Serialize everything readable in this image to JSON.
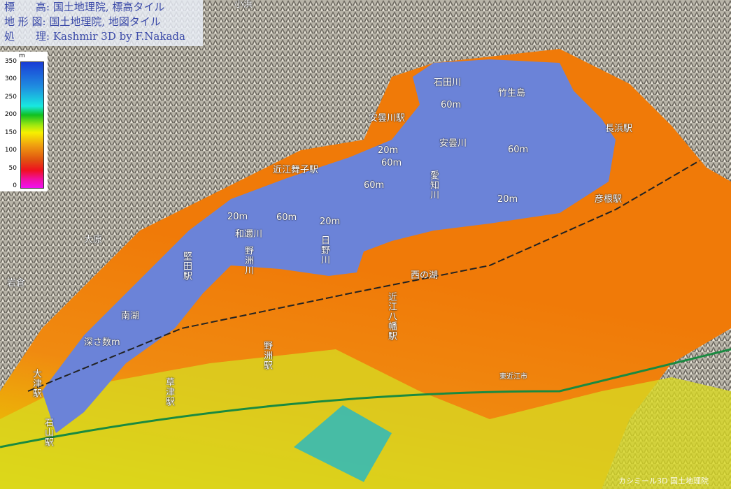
{
  "credits": [
    "標　　高: 国土地理院, 標高タイル",
    "地 形 図: 国土地理院, 地図タイル",
    "処　　理: Kashmir 3D by F.Nakada"
  ],
  "elevation_scale": {
    "unit": "m",
    "ticks": [
      "350",
      "300",
      "250",
      "200",
      "150",
      "100",
      "50",
      "0"
    ],
    "colors": [
      "#1a3dd6",
      "#18e8e0",
      "#10c020",
      "#f7f000",
      "#f0a010",
      "#e05010",
      "#f01020",
      "#f010f0"
    ]
  },
  "labels": {
    "obama": "小浜",
    "ishidagawa": "石田川",
    "chikubushima": "竹生島",
    "depth_60_a": "60m",
    "adogawa_st": "安曇川駅",
    "nagahama_st": "長浜駅",
    "depth_20_a": "20m",
    "adogawa": "安曇川",
    "depth_60_b": "60m",
    "depth_60_c": "60m",
    "omimaiko_st": "近江舞子駅",
    "depth_60_d": "60m",
    "echigawa": "愛知川",
    "depth_20_b": "20m",
    "hikone_st": "彦根駅",
    "depth_20_c": "20m",
    "depth_60_e": "60m",
    "depth_20_d": "20m",
    "wanigawa": "和邇川",
    "yasugawa": "野洲川",
    "hinogawa": "日野川",
    "ohara": "大原",
    "katata_st": "堅田駅",
    "iwakura": "岩倉",
    "nishinoko": "西の湖",
    "omihachiman_st": "近江八幡駅",
    "nanko": "南湖",
    "shallow": "深さ数m",
    "yasu_st": "野洲駅",
    "otsu_st": "大津駅",
    "kusatsu_st": "草津駅",
    "ishiyama_st": "石山駅",
    "higashiomi": "東近江市"
  },
  "watermark": "カシミール3D  国土地理院"
}
